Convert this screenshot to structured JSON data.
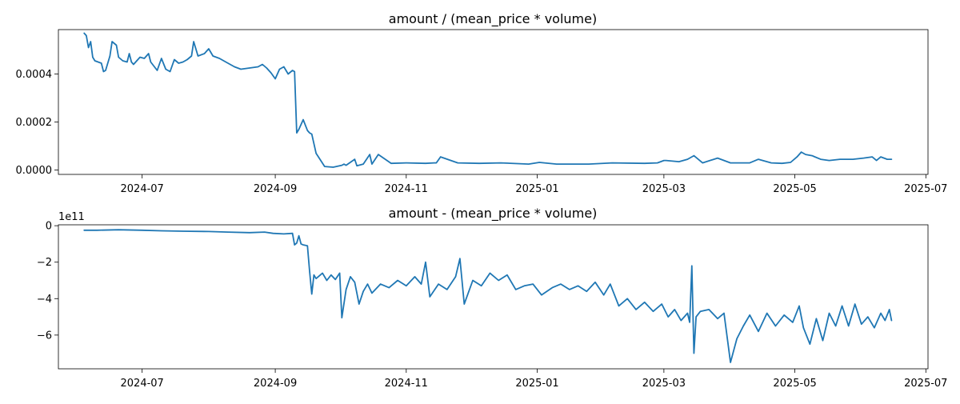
{
  "figure": {
    "background": "#ffffff",
    "line_color": "#1f77b4"
  },
  "chart_data": [
    {
      "type": "line",
      "title": "amount / (mean_price * volume)",
      "xlabel": "",
      "ylabel": "",
      "grid": false,
      "legend": false,
      "xlim": [
        "2024-05-23",
        "2025-07-02"
      ],
      "ylim": [
        -1.8e-05,
        0.000585
      ],
      "x_ticks": [
        {
          "date": "2024-07-01",
          "label": "2024-07"
        },
        {
          "date": "2024-09-01",
          "label": "2024-09"
        },
        {
          "date": "2024-11-01",
          "label": "2024-11"
        },
        {
          "date": "2025-01-01",
          "label": "2025-01"
        },
        {
          "date": "2025-03-01",
          "label": "2025-03"
        },
        {
          "date": "2025-05-01",
          "label": "2025-05"
        },
        {
          "date": "2025-07-01",
          "label": "2025-07"
        }
      ],
      "y_ticks": [
        {
          "value": 0.0,
          "label": "0.0000"
        },
        {
          "value": 0.0002,
          "label": "0.0002"
        },
        {
          "value": 0.0004,
          "label": "0.0004"
        }
      ],
      "multiplier_label": "",
      "series": [
        {
          "color": "#1f77b4",
          "x": [
            "2024-06-04",
            "2024-06-05",
            "2024-06-06",
            "2024-06-07",
            "2024-06-08",
            "2024-06-09",
            "2024-06-12",
            "2024-06-13",
            "2024-06-14",
            "2024-06-16",
            "2024-06-17",
            "2024-06-19",
            "2024-06-20",
            "2024-06-22",
            "2024-06-24",
            "2024-06-25",
            "2024-06-26",
            "2024-06-27",
            "2024-06-30",
            "2024-07-02",
            "2024-07-04",
            "2024-07-05",
            "2024-07-08",
            "2024-07-10",
            "2024-07-12",
            "2024-07-14",
            "2024-07-16",
            "2024-07-18",
            "2024-07-20",
            "2024-07-22",
            "2024-07-24",
            "2024-07-25",
            "2024-07-27",
            "2024-07-30",
            "2024-08-01",
            "2024-08-03",
            "2024-08-06",
            "2024-08-09",
            "2024-08-13",
            "2024-08-16",
            "2024-08-20",
            "2024-08-24",
            "2024-08-26",
            "2024-08-28",
            "2024-08-30",
            "2024-09-01",
            "2024-09-03",
            "2024-09-05",
            "2024-09-07",
            "2024-09-09",
            "2024-09-10",
            "2024-09-11",
            "2024-09-12",
            "2024-09-14",
            "2024-09-16",
            "2024-09-17",
            "2024-09-18",
            "2024-09-20",
            "2024-09-24",
            "2024-09-28",
            "2024-10-02",
            "2024-10-03",
            "2024-10-04",
            "2024-10-08",
            "2024-10-09",
            "2024-10-12",
            "2024-10-15",
            "2024-10-16",
            "2024-10-19",
            "2024-10-25",
            "2024-11-01",
            "2024-11-10",
            "2024-11-14",
            "2024-11-15",
            "2024-11-17",
            "2024-11-25",
            "2024-12-05",
            "2024-12-15",
            "2024-12-28",
            "2025-01-02",
            "2025-01-10",
            "2025-01-25",
            "2025-02-05",
            "2025-02-20",
            "2025-02-26",
            "2025-03-01",
            "2025-03-02",
            "2025-03-08",
            "2025-03-12",
            "2025-03-15",
            "2025-03-19",
            "2025-03-26",
            "2025-04-01",
            "2025-04-10",
            "2025-04-14",
            "2025-04-20",
            "2025-04-25",
            "2025-04-29",
            "2025-05-02",
            "2025-05-04",
            "2025-05-06",
            "2025-05-09",
            "2025-05-13",
            "2025-05-17",
            "2025-05-22",
            "2025-05-28",
            "2025-06-02",
            "2025-06-06",
            "2025-06-08",
            "2025-06-10",
            "2025-06-13",
            "2025-06-15"
          ],
          "values": [
            0.00057,
            0.00056,
            0.00051,
            0.000535,
            0.00047,
            0.000455,
            0.000445,
            0.00041,
            0.000415,
            0.000475,
            0.000535,
            0.00052,
            0.00047,
            0.000455,
            0.00045,
            0.000485,
            0.00045,
            0.00044,
            0.00047,
            0.000465,
            0.000485,
            0.00045,
            0.000415,
            0.000465,
            0.00042,
            0.00041,
            0.00046,
            0.000445,
            0.00045,
            0.00046,
            0.000475,
            0.000535,
            0.000475,
            0.000485,
            0.000505,
            0.000475,
            0.000465,
            0.00045,
            0.00043,
            0.00042,
            0.000425,
            0.00043,
            0.00044,
            0.000425,
            0.000405,
            0.00038,
            0.00042,
            0.00043,
            0.0004,
            0.000415,
            0.00041,
            0.000155,
            0.00017,
            0.00021,
            0.000165,
            0.000155,
            0.00015,
            7e-05,
            1.5e-05,
            1.2e-05,
            2e-05,
            2.5e-05,
            2e-05,
            4.5e-05,
            1.8e-05,
            2.5e-05,
            6.5e-05,
            2.5e-05,
            6.5e-05,
            2.8e-05,
            3e-05,
            2.8e-05,
            3e-05,
            3e-05,
            5.5e-05,
            3e-05,
            2.8e-05,
            3e-05,
            2.5e-05,
            3.2e-05,
            2.5e-05,
            2.5e-05,
            3e-05,
            2.8e-05,
            3e-05,
            4e-05,
            4e-05,
            3.5e-05,
            4.5e-05,
            6e-05,
            3e-05,
            5e-05,
            3e-05,
            3e-05,
            4.5e-05,
            3e-05,
            2.8e-05,
            3.2e-05,
            5.5e-05,
            7.5e-05,
            6.5e-05,
            6e-05,
            4.5e-05,
            4e-05,
            4.5e-05,
            4.5e-05,
            5e-05,
            5.5e-05,
            4e-05,
            5.5e-05,
            4.5e-05,
            4.5e-05
          ]
        }
      ]
    },
    {
      "type": "line",
      "title": "amount - (mean_price * volume)",
      "xlabel": "",
      "ylabel": "",
      "grid": false,
      "legend": false,
      "xlim": [
        "2024-05-23",
        "2025-07-02"
      ],
      "ylim": [
        -785000000000.0,
        5000000000.0
      ],
      "x_ticks": [
        {
          "date": "2024-07-01",
          "label": "2024-07"
        },
        {
          "date": "2024-09-01",
          "label": "2024-09"
        },
        {
          "date": "2024-11-01",
          "label": "2024-11"
        },
        {
          "date": "2025-01-01",
          "label": "2025-01"
        },
        {
          "date": "2025-03-01",
          "label": "2025-03"
        },
        {
          "date": "2025-05-01",
          "label": "2025-05"
        },
        {
          "date": "2025-07-01",
          "label": "2025-07"
        }
      ],
      "y_ticks": [
        {
          "value": 0.0,
          "label": "0"
        },
        {
          "value": -200000000000.0,
          "label": "−2"
        },
        {
          "value": -400000000000.0,
          "label": "−4"
        },
        {
          "value": -600000000000.0,
          "label": "−6"
        }
      ],
      "multiplier_label": "1e11",
      "series": [
        {
          "color": "#1f77b4",
          "x": [
            "2024-06-04",
            "2024-06-10",
            "2024-06-20",
            "2024-07-01",
            "2024-07-10",
            "2024-07-20",
            "2024-08-01",
            "2024-08-10",
            "2024-08-20",
            "2024-08-27",
            "2024-08-31",
            "2024-09-05",
            "2024-09-09",
            "2024-09-10",
            "2024-09-11",
            "2024-09-12",
            "2024-09-13",
            "2024-09-14",
            "2024-09-16",
            "2024-09-17",
            "2024-09-18",
            "2024-09-19",
            "2024-09-20",
            "2024-09-21",
            "2024-09-23",
            "2024-09-25",
            "2024-09-27",
            "2024-09-29",
            "2024-10-01",
            "2024-10-02",
            "2024-10-04",
            "2024-10-06",
            "2024-10-08",
            "2024-10-10",
            "2024-10-12",
            "2024-10-14",
            "2024-10-16",
            "2024-10-20",
            "2024-10-24",
            "2024-10-28",
            "2024-11-01",
            "2024-11-05",
            "2024-11-08",
            "2024-11-10",
            "2024-11-12",
            "2024-11-16",
            "2024-11-20",
            "2024-11-24",
            "2024-11-26",
            "2024-11-28",
            "2024-12-02",
            "2024-12-06",
            "2024-12-10",
            "2024-12-14",
            "2024-12-18",
            "2024-12-22",
            "2024-12-26",
            "2024-12-30",
            "2025-01-03",
            "2025-01-08",
            "2025-01-12",
            "2025-01-16",
            "2025-01-20",
            "2025-01-24",
            "2025-01-28",
            "2025-02-01",
            "2025-02-04",
            "2025-02-08",
            "2025-02-12",
            "2025-02-16",
            "2025-02-20",
            "2025-02-24",
            "2025-02-28",
            "2025-03-03",
            "2025-03-06",
            "2025-03-09",
            "2025-03-12",
            "2025-03-13",
            "2025-03-14",
            "2025-03-15",
            "2025-03-16",
            "2025-03-18",
            "2025-03-22",
            "2025-03-26",
            "2025-03-29",
            "2025-04-01",
            "2025-04-04",
            "2025-04-07",
            "2025-04-10",
            "2025-04-14",
            "2025-04-18",
            "2025-04-22",
            "2025-04-26",
            "2025-04-30",
            "2025-05-03",
            "2025-05-05",
            "2025-05-08",
            "2025-05-11",
            "2025-05-14",
            "2025-05-17",
            "2025-05-20",
            "2025-05-23",
            "2025-05-26",
            "2025-05-29",
            "2025-06-01",
            "2025-06-04",
            "2025-06-07",
            "2025-06-10",
            "2025-06-12",
            "2025-06-14",
            "2025-06-15"
          ],
          "values": [
            -25000000000.0,
            -25000000000.0,
            -22000000000.0,
            -25000000000.0,
            -28000000000.0,
            -30000000000.0,
            -32000000000.0,
            -35000000000.0,
            -38000000000.0,
            -35000000000.0,
            -42000000000.0,
            -45000000000.0,
            -42000000000.0,
            -105000000000.0,
            -95000000000.0,
            -55000000000.0,
            -100000000000.0,
            -105000000000.0,
            -110000000000.0,
            -250000000000.0,
            -375000000000.0,
            -270000000000.0,
            -290000000000.0,
            -280000000000.0,
            -260000000000.0,
            -300000000000.0,
            -270000000000.0,
            -295000000000.0,
            -260000000000.0,
            -505000000000.0,
            -350000000000.0,
            -280000000000.0,
            -310000000000.0,
            -430000000000.0,
            -360000000000.0,
            -320000000000.0,
            -370000000000.0,
            -320000000000.0,
            -340000000000.0,
            -300000000000.0,
            -330000000000.0,
            -280000000000.0,
            -320000000000.0,
            -200000000000.0,
            -390000000000.0,
            -320000000000.0,
            -350000000000.0,
            -280000000000.0,
            -180000000000.0,
            -430000000000.0,
            -300000000000.0,
            -330000000000.0,
            -260000000000.0,
            -300000000000.0,
            -270000000000.0,
            -350000000000.0,
            -330000000000.0,
            -320000000000.0,
            -380000000000.0,
            -340000000000.0,
            -320000000000.0,
            -350000000000.0,
            -330000000000.0,
            -360000000000.0,
            -310000000000.0,
            -380000000000.0,
            -320000000000.0,
            -440000000000.0,
            -400000000000.0,
            -460000000000.0,
            -420000000000.0,
            -470000000000.0,
            -430000000000.0,
            -500000000000.0,
            -460000000000.0,
            -520000000000.0,
            -480000000000.0,
            -530000000000.0,
            -220000000000.0,
            -700000000000.0,
            -500000000000.0,
            -470000000000.0,
            -460000000000.0,
            -510000000000.0,
            -480000000000.0,
            -750000000000.0,
            -620000000000.0,
            -550000000000.0,
            -490000000000.0,
            -580000000000.0,
            -480000000000.0,
            -550000000000.0,
            -490000000000.0,
            -530000000000.0,
            -440000000000.0,
            -560000000000.0,
            -650000000000.0,
            -510000000000.0,
            -630000000000.0,
            -480000000000.0,
            -550000000000.0,
            -440000000000.0,
            -550000000000.0,
            -430000000000.0,
            -540000000000.0,
            -500000000000.0,
            -560000000000.0,
            -480000000000.0,
            -520000000000.0,
            -460000000000.0,
            -520000000000.0
          ]
        }
      ]
    }
  ]
}
